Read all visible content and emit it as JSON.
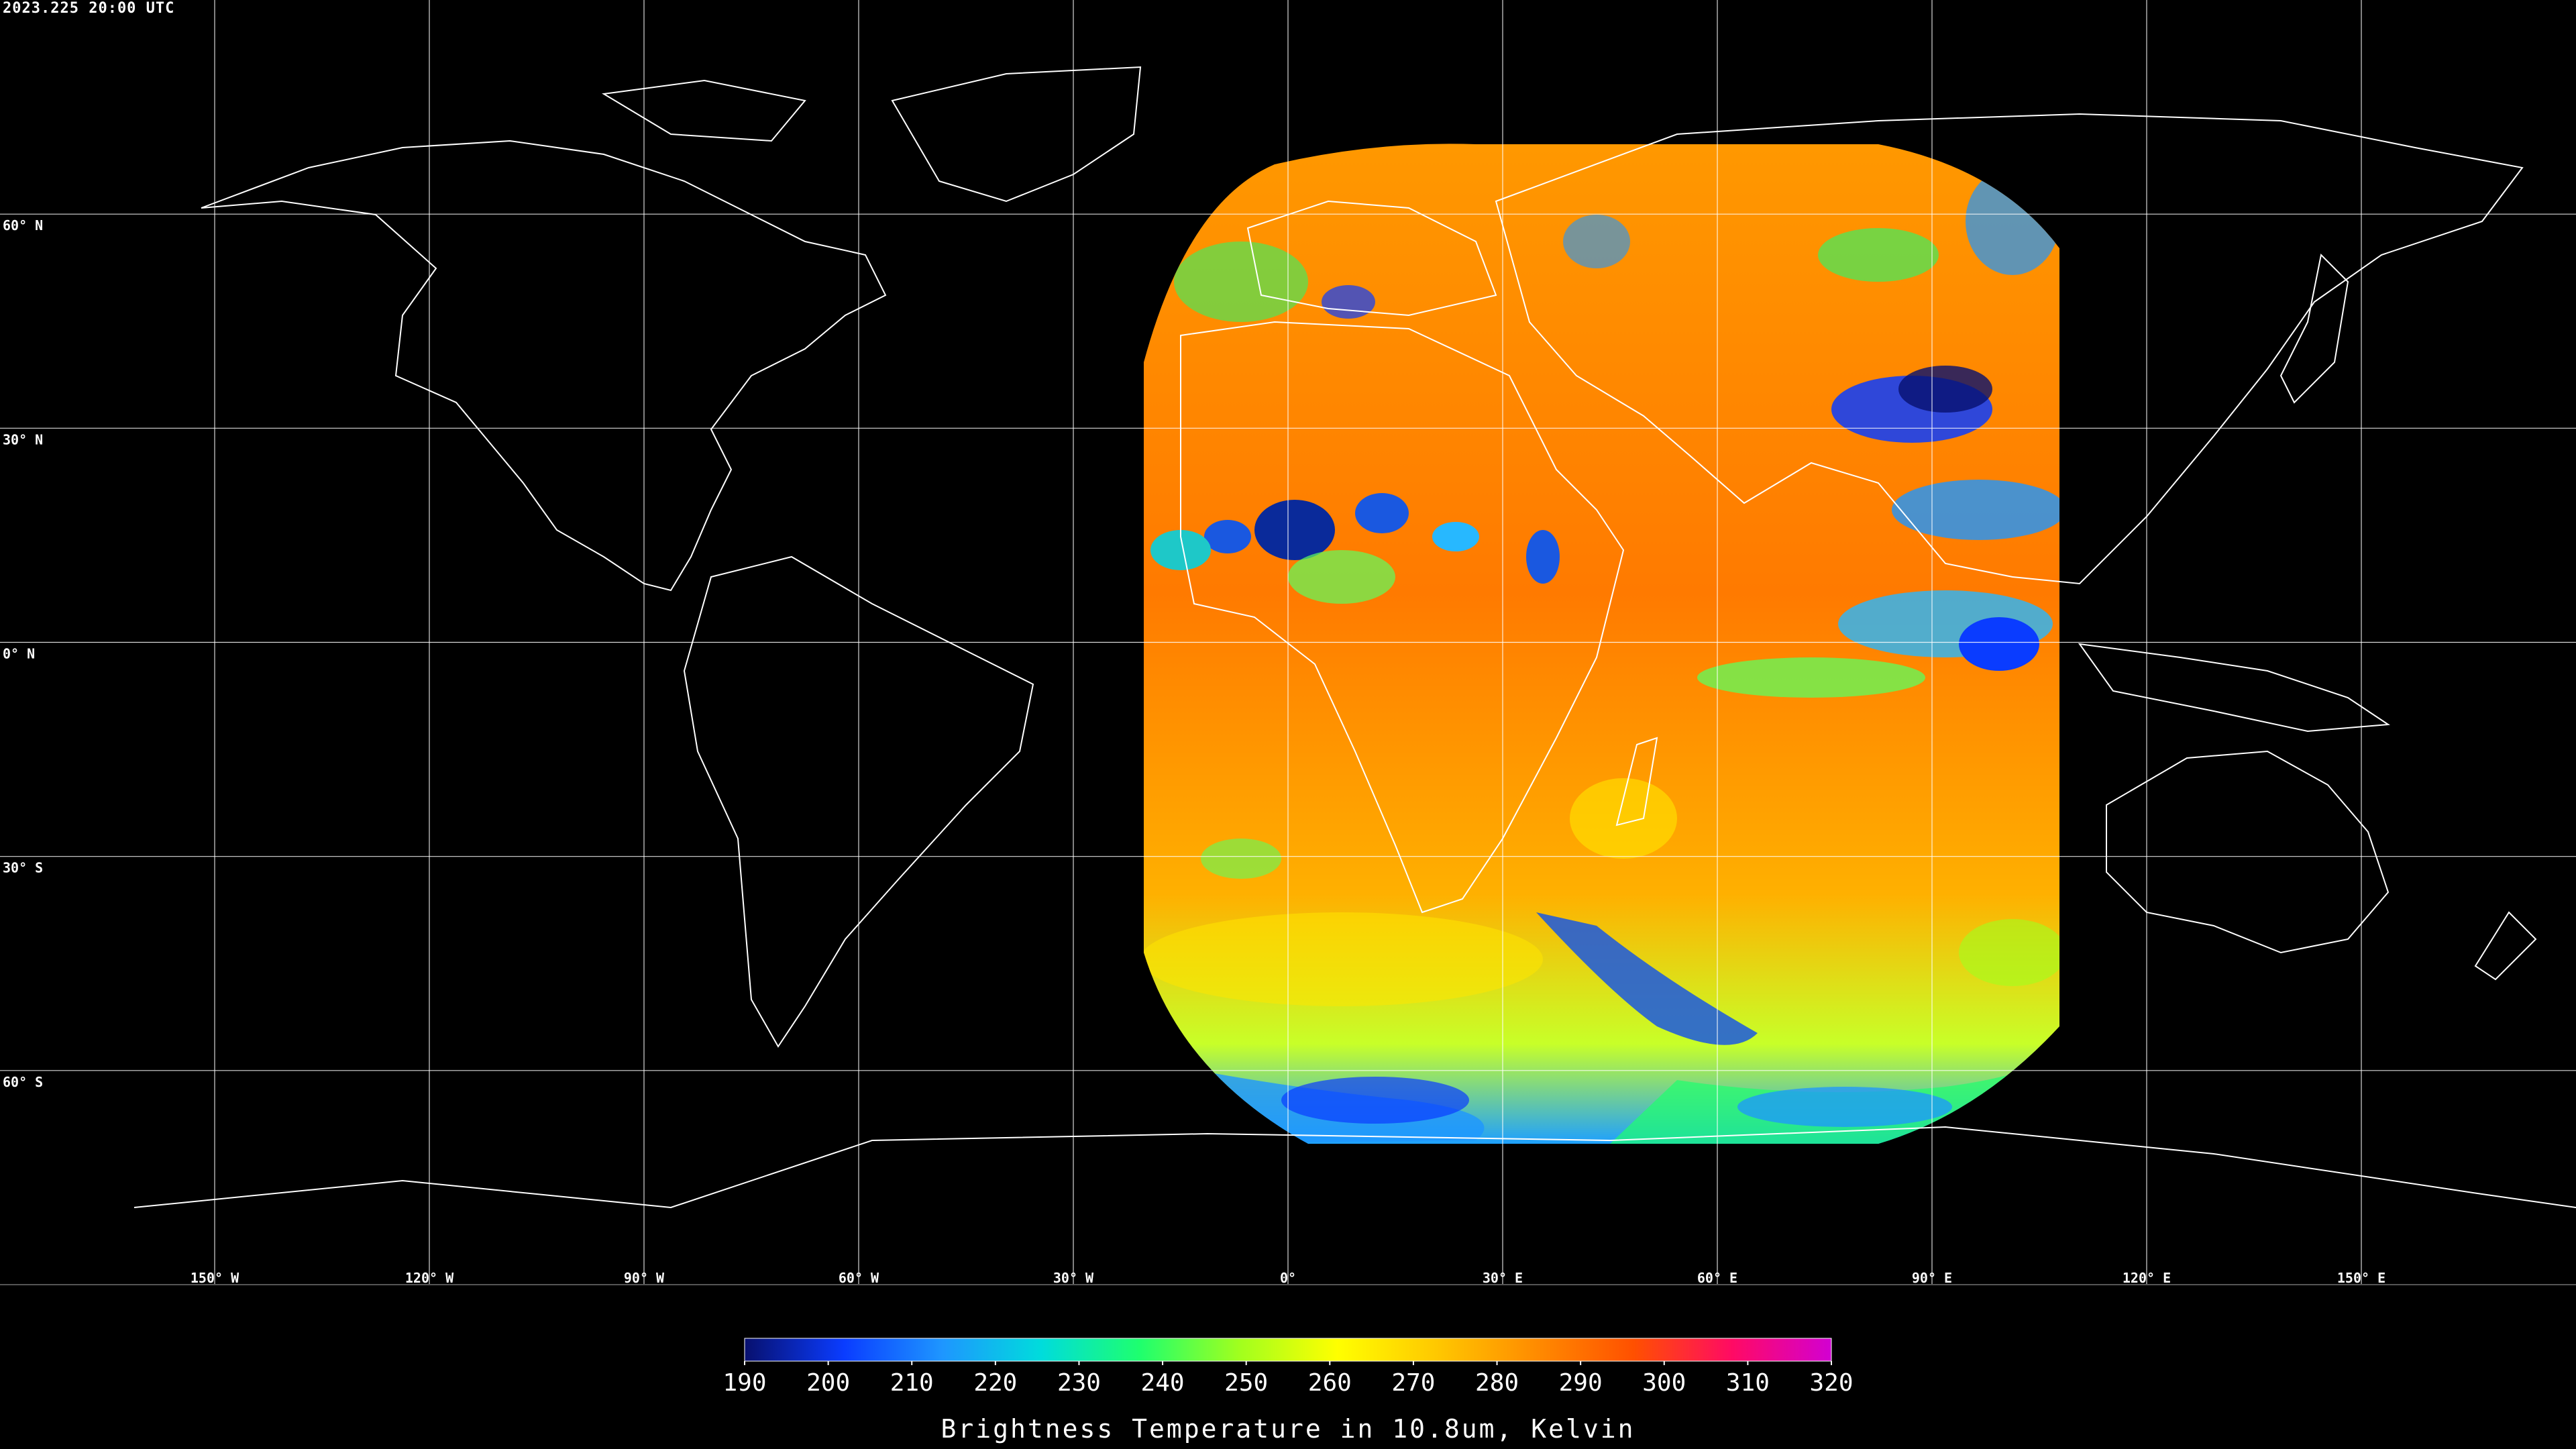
{
  "title": "2023.225 20:00 UTC",
  "map": {
    "latitude_labels": [
      "60° N",
      "30° N",
      "0° N",
      "30° S",
      "60° S"
    ],
    "latitude_values": [
      60,
      30,
      0,
      -30,
      -60
    ],
    "longitude_labels": [
      "150° W",
      "120° W",
      "90° W",
      "60° W",
      "30° W",
      "0°",
      "30° E",
      "60° E",
      "90° E",
      "120° E",
      "150° E"
    ],
    "longitude_values": [
      -150,
      -120,
      -90,
      -60,
      -30,
      0,
      30,
      60,
      90,
      120,
      150
    ],
    "lon_range": [
      -180,
      180
    ],
    "lat_range": [
      -90,
      90
    ],
    "grid": true,
    "coastline_color": "#ffffff",
    "background_color": "#000000",
    "satellite_coverage_lon_range": [
      -20,
      110
    ],
    "satellite_coverage_lat_range": [
      -70,
      70
    ]
  },
  "colorbar": {
    "title": "Brightness Temperature in 10.8um, Kelvin",
    "ticks": [
      "190",
      "200",
      "210",
      "220",
      "230",
      "240",
      "250",
      "260",
      "270",
      "280",
      "290",
      "300",
      "310",
      "320"
    ],
    "range": [
      190,
      320
    ],
    "colors": [
      "#08106e",
      "#0a3cff",
      "#1e96ff",
      "#00dcdc",
      "#1eff6e",
      "#a0ff1e",
      "#ffff00",
      "#ffc800",
      "#ff8c00",
      "#ff5000",
      "#ff0a64",
      "#d200d2"
    ]
  }
}
